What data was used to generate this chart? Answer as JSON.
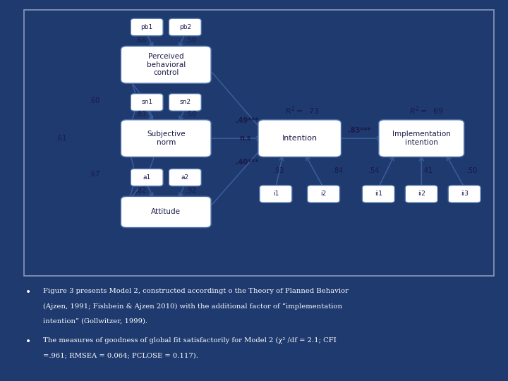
{
  "bg_color": "#1e3a6e",
  "diagram_bg": "#f0f0f0",
  "box_bg": "#ffffff",
  "box_edge": "#4a6fa5",
  "text_color": "#1a1a4a",
  "arrow_color": "#3a5a9a",
  "bullet1_line1": "Figure 3 presents Model 2, constructed accordingt o the Theory of Planned Behavior",
  "bullet1_line2": "(Ajzen, 1991; Fishbein & Ajzen 2010) with the additional factor of “implementation",
  "bullet1_line3": "intention” (Gollwitzer, 1999).",
  "bullet2_line1": "The measures of goodness of global fit satisfactorily for Model 2 (χ² /df = 2.1; CFI",
  "bullet2_line2": "=.961; RMSEA = 0.064; PCLOSE = 0.117)."
}
